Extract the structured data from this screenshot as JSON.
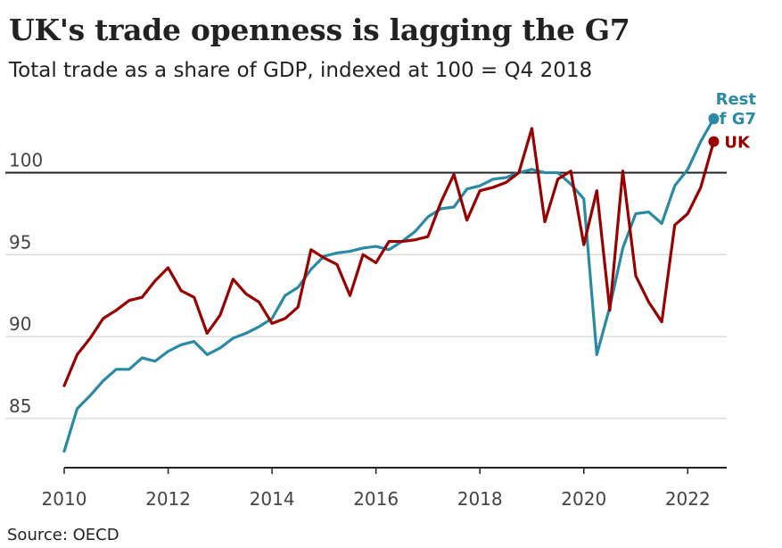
{
  "title": "UK's trade openness is lagging the G7",
  "subtitle": "Total trade as a share of GDP, indexed at 100 = Q4 2018",
  "source": "Source: OECD",
  "chart_data": {
    "type": "line",
    "title": "UK's trade openness is lagging the G7",
    "subtitle": "Total trade as a share of GDP, indexed at 100 = Q4 2018",
    "xlabel": "",
    "ylabel": "",
    "xlim": [
      2010,
      2022.75
    ],
    "ylim": [
      82,
      104
    ],
    "x_ticks": [
      2010,
      2012,
      2014,
      2016,
      2018,
      2020,
      2022
    ],
    "y_ticks": [
      85,
      90,
      95,
      100
    ],
    "reference_line": 100,
    "grid": "horizontal",
    "legend": "direct labels at line ends",
    "series": [
      {
        "name": "Rest of G7",
        "label_lines": [
          "Rest",
          "of G7"
        ],
        "color": "#2a8aa5",
        "x": [
          2010,
          2010.25,
          2010.5,
          2010.75,
          2011,
          2011.25,
          2011.5,
          2011.75,
          2012,
          2012.25,
          2012.5,
          2012.75,
          2013,
          2013.25,
          2013.5,
          2013.75,
          2014,
          2014.25,
          2014.5,
          2014.75,
          2015,
          2015.25,
          2015.5,
          2015.75,
          2016,
          2016.25,
          2016.5,
          2016.75,
          2017,
          2017.25,
          2017.5,
          2017.75,
          2018,
          2018.25,
          2018.5,
          2018.75,
          2019,
          2019.25,
          2019.5,
          2019.75,
          2020,
          2020.25,
          2020.5,
          2020.75,
          2021,
          2021.25,
          2021.5,
          2021.75,
          2022,
          2022.25,
          2022.5
        ],
        "values": [
          83.0,
          85.6,
          86.4,
          87.3,
          88.0,
          88.0,
          88.7,
          88.5,
          89.1,
          89.5,
          89.7,
          88.9,
          89.3,
          89.9,
          90.2,
          90.6,
          91.1,
          92.5,
          93.0,
          94.1,
          94.9,
          95.1,
          95.2,
          95.4,
          95.5,
          95.3,
          95.8,
          96.4,
          97.3,
          97.8,
          97.9,
          99.0,
          99.2,
          99.6,
          99.7,
          100.0,
          100.2,
          100.0,
          100.0,
          99.3,
          98.4,
          88.9,
          91.8,
          95.4,
          97.5,
          97.6,
          96.9,
          99.2,
          100.2,
          101.9,
          103.3
        ]
      },
      {
        "name": "UK",
        "label_lines": [
          "UK"
        ],
        "color": "#990000",
        "x": [
          2010,
          2010.25,
          2010.5,
          2010.75,
          2011,
          2011.25,
          2011.5,
          2011.75,
          2012,
          2012.25,
          2012.5,
          2012.75,
          2013,
          2013.25,
          2013.5,
          2013.75,
          2014,
          2014.25,
          2014.5,
          2014.75,
          2015,
          2015.25,
          2015.5,
          2015.75,
          2016,
          2016.25,
          2016.5,
          2016.75,
          2017,
          2017.25,
          2017.5,
          2017.75,
          2018,
          2018.25,
          2018.5,
          2018.75,
          2019,
          2019.25,
          2019.5,
          2019.75,
          2020,
          2020.25,
          2020.5,
          2020.75,
          2021,
          2021.25,
          2021.5,
          2021.75,
          2022,
          2022.25,
          2022.5
        ],
        "values": [
          87.0,
          88.9,
          89.9,
          91.1,
          91.6,
          92.2,
          92.4,
          93.4,
          94.2,
          92.8,
          92.4,
          90.2,
          91.3,
          93.5,
          92.6,
          92.1,
          90.8,
          91.1,
          91.8,
          95.3,
          94.8,
          94.4,
          92.5,
          95.0,
          94.5,
          95.8,
          95.8,
          95.9,
          96.1,
          98.2,
          99.9,
          97.1,
          98.9,
          99.1,
          99.4,
          100.0,
          102.7,
          97.0,
          99.6,
          100.1,
          95.6,
          98.9,
          91.6,
          100.1,
          93.7,
          92.1,
          90.9,
          96.8,
          97.5,
          99.1,
          101.9
        ]
      }
    ]
  }
}
